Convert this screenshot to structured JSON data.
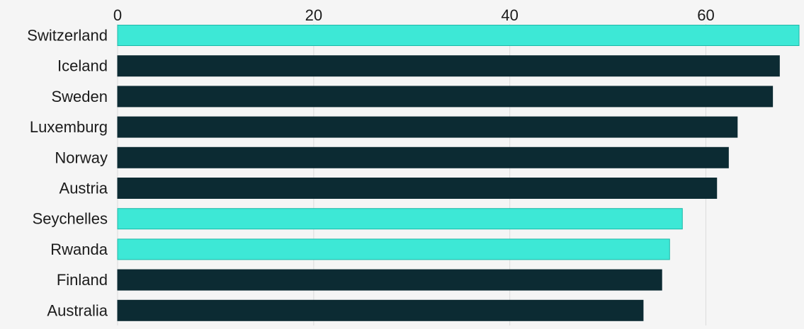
{
  "chart_data": {
    "type": "bar",
    "orientation": "horizontal",
    "categories": [
      "Switzerland",
      "Iceland",
      "Sweden",
      "Luxemburg",
      "Norway",
      "Austria",
      "Seychelles",
      "Rwanda",
      "Finland",
      "Australia"
    ],
    "values": [
      69.5,
      67.5,
      66.8,
      63.2,
      62.3,
      61.1,
      57.6,
      56.3,
      55.5,
      53.6
    ],
    "highlighted": [
      "Switzerland",
      "Seychelles",
      "Rwanda"
    ],
    "title": "",
    "xlabel": "",
    "ylabel": "",
    "xlim": [
      0,
      69.5
    ],
    "xticks": [
      0,
      20,
      40,
      60
    ],
    "tick_labels": [
      "0",
      "20",
      "40",
      "60"
    ],
    "grid": true,
    "axis_position": "top",
    "colors": {
      "highlight": "#3de8d6",
      "highlight_stroke": "#1fb8a8",
      "default": "#0c2b33",
      "background": "#f5f5f5",
      "grid": "#dcdcdc",
      "text": "#1b1b1b"
    }
  }
}
